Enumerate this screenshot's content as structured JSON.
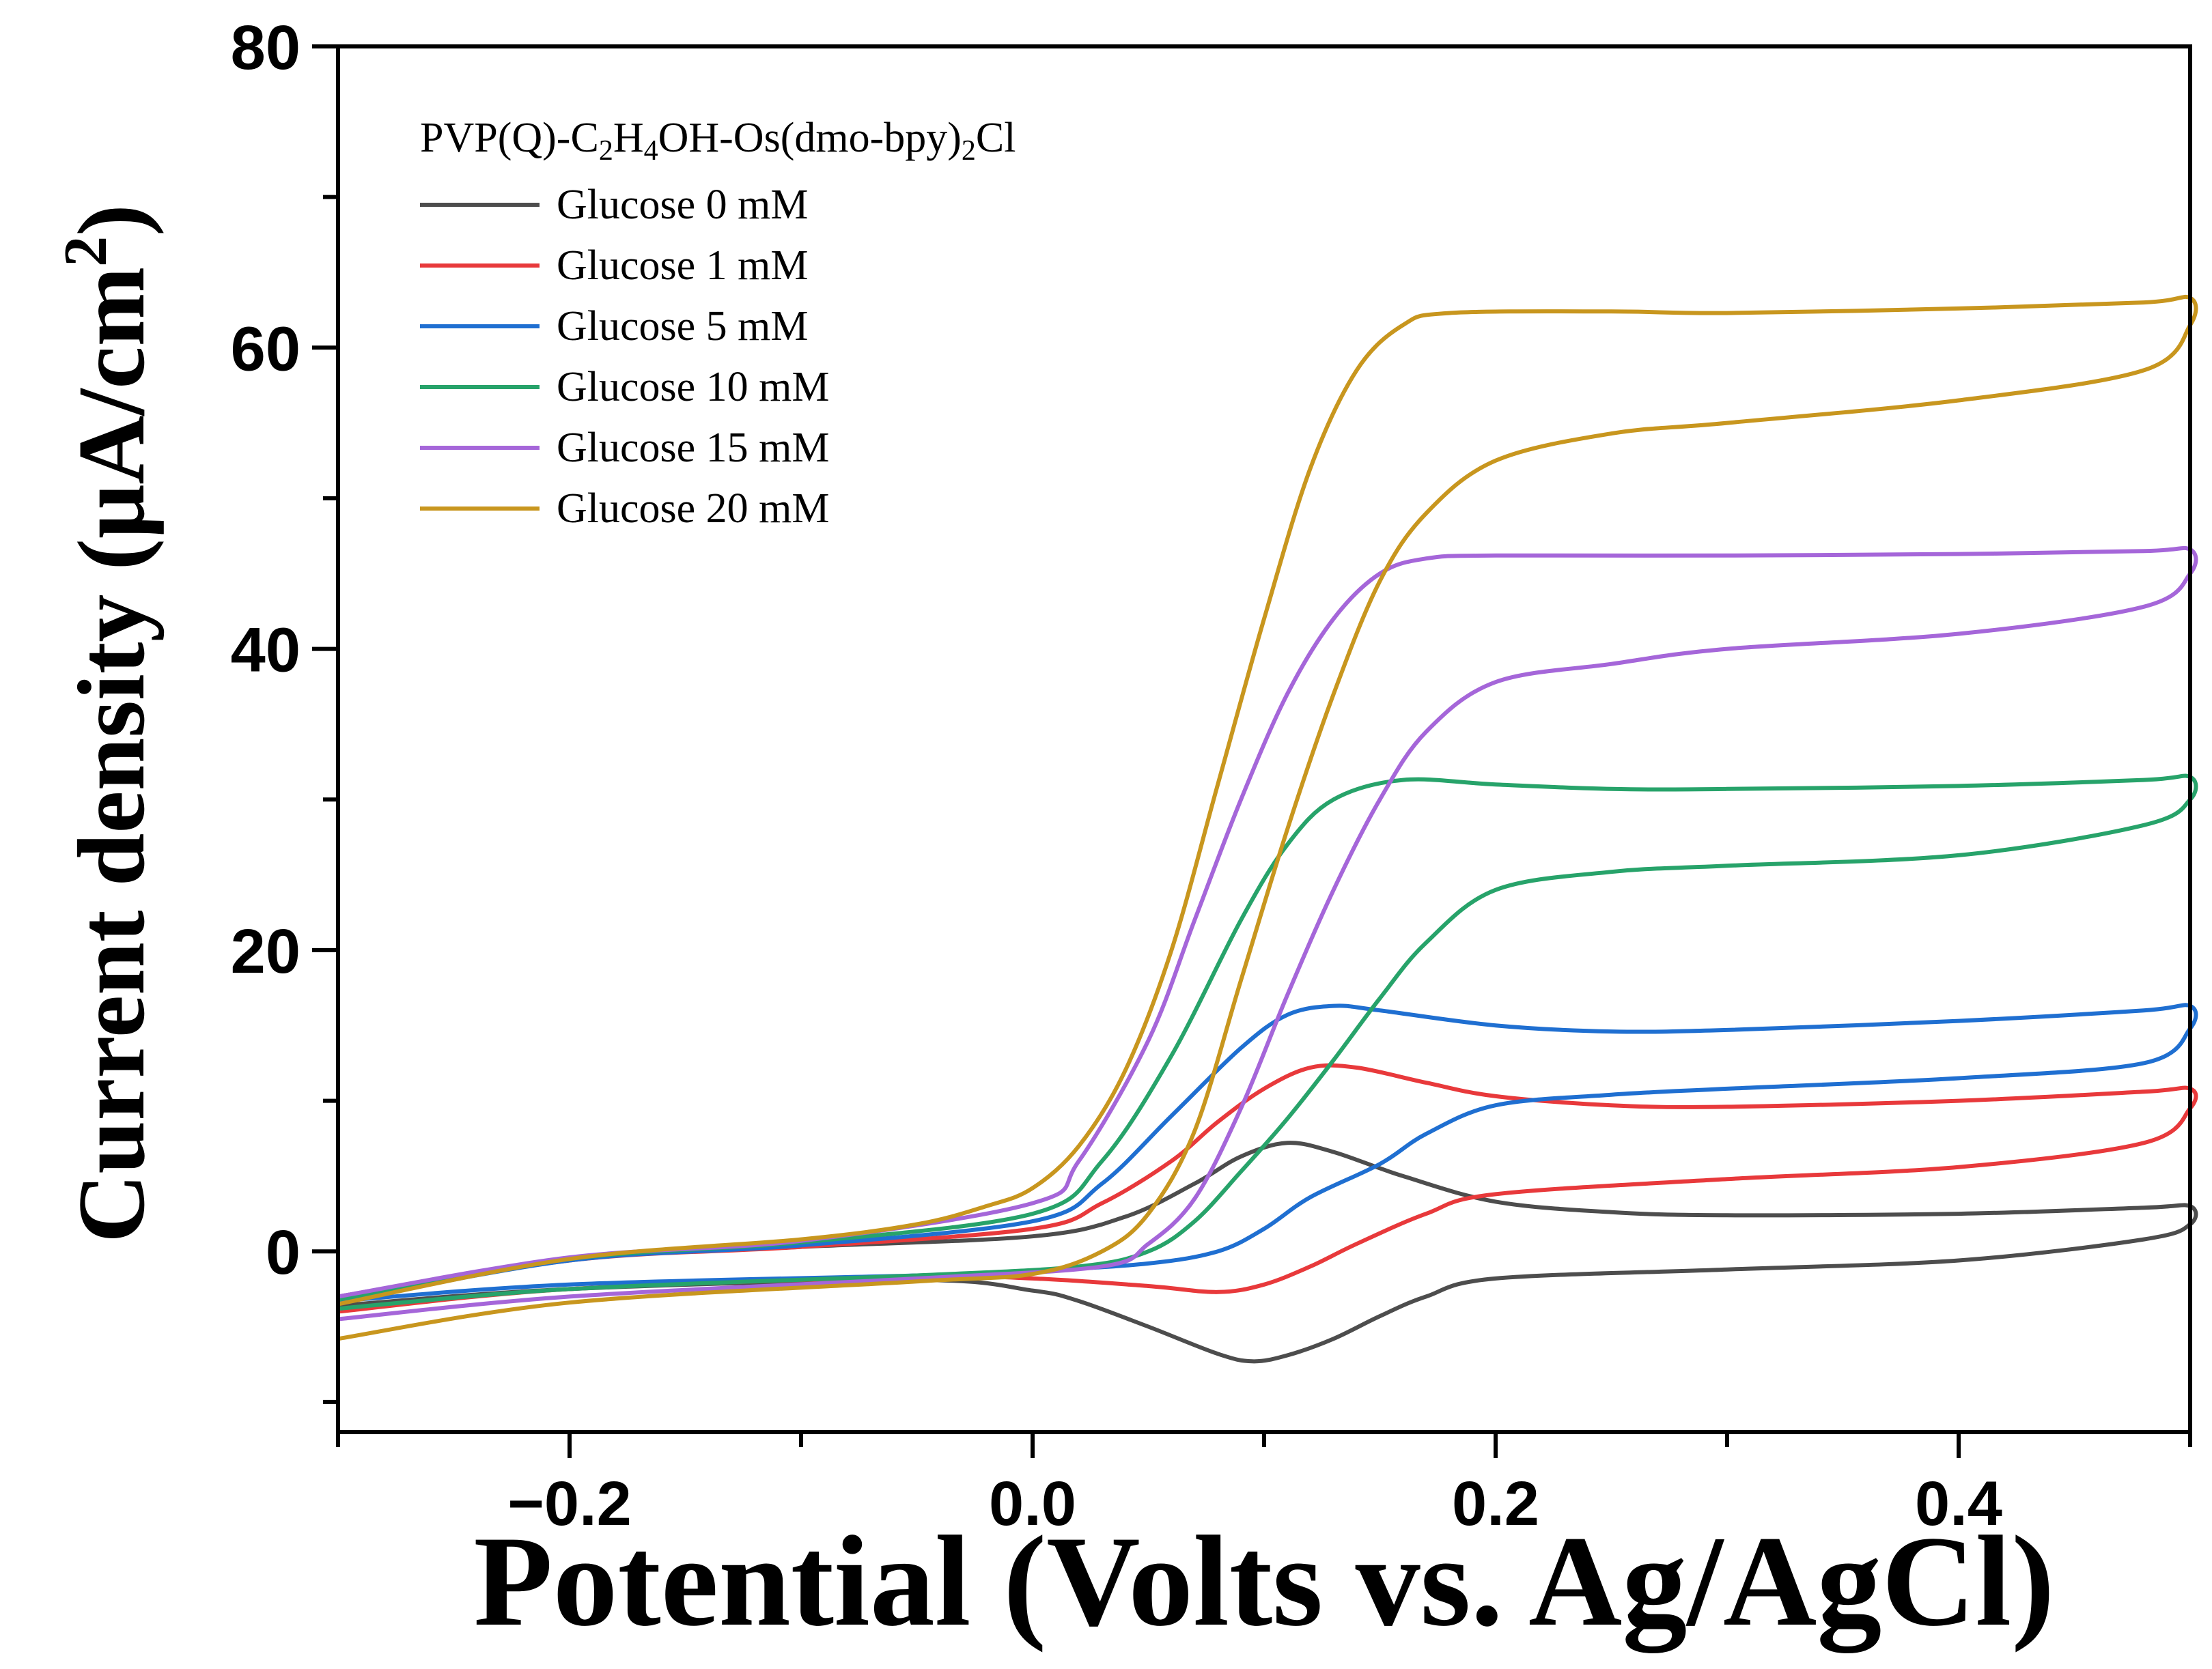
{
  "chart_data": {
    "type": "line",
    "title": "",
    "xlabel": "Potential (Volts vs. Ag/AgCl)",
    "ylabel_main": "Current density (μA/cm",
    "ylabel_sup": "2",
    "ylabel_close": ")",
    "xlim": [
      -0.3,
      0.5
    ],
    "ylim": [
      -12,
      80
    ],
    "x_ticks": [
      -0.2,
      0.0,
      0.2,
      0.4
    ],
    "x_tick_labels": [
      "−0.2",
      "0.0",
      "0.2",
      "0.4"
    ],
    "x_minor_ticks": [
      -0.3,
      -0.1,
      0.1,
      0.3,
      0.5
    ],
    "y_ticks": [
      0,
      20,
      40,
      60,
      80
    ],
    "y_tick_labels": [
      "0",
      "20",
      "40",
      "60",
      "80"
    ],
    "y_minor_ticks": [
      -10,
      10,
      30,
      50,
      70
    ],
    "legend": {
      "title_parts": [
        "PVP(Q)-C",
        "2",
        "H",
        "4",
        "OH-Os(dmo-bpy)",
        "2",
        "Cl"
      ],
      "placement": "top-left"
    },
    "series": [
      {
        "name": "Glucose 0 mM",
        "color": "#4d4d4d",
        "upper": [
          [
            -0.3,
            -3.0
          ],
          [
            -0.2,
            -0.5
          ],
          [
            -0.1,
            0.3
          ],
          [
            0.0,
            1.0
          ],
          [
            0.04,
            2.3
          ],
          [
            0.07,
            4.5
          ],
          [
            0.09,
            6.3
          ],
          [
            0.11,
            7.2
          ],
          [
            0.13,
            6.6
          ],
          [
            0.16,
            5.0
          ],
          [
            0.2,
            3.3
          ],
          [
            0.25,
            2.6
          ],
          [
            0.3,
            2.4
          ],
          [
            0.4,
            2.5
          ],
          [
            0.48,
            2.9
          ],
          [
            0.5,
            3.0
          ]
        ],
        "lower": [
          [
            0.5,
            1.8
          ],
          [
            0.48,
            0.8
          ],
          [
            0.4,
            -0.6
          ],
          [
            0.3,
            -1.2
          ],
          [
            0.2,
            -1.8
          ],
          [
            0.17,
            -3.0
          ],
          [
            0.15,
            -4.3
          ],
          [
            0.13,
            -5.8
          ],
          [
            0.11,
            -6.9
          ],
          [
            0.095,
            -7.3
          ],
          [
            0.08,
            -6.8
          ],
          [
            0.05,
            -5.0
          ],
          [
            0.02,
            -3.3
          ],
          [
            0.0,
            -2.6
          ],
          [
            -0.05,
            -1.9
          ],
          [
            -0.2,
            -2.5
          ],
          [
            -0.3,
            -3.6
          ]
        ]
      },
      {
        "name": "Glucose 1 mM",
        "color": "#e8393b",
        "upper": [
          [
            -0.3,
            -3.3
          ],
          [
            -0.2,
            -0.6
          ],
          [
            -0.1,
            0.3
          ],
          [
            0.0,
            1.5
          ],
          [
            0.03,
            3.2
          ],
          [
            0.06,
            6.0
          ],
          [
            0.08,
            8.6
          ],
          [
            0.1,
            10.8
          ],
          [
            0.12,
            12.2
          ],
          [
            0.14,
            12.2
          ],
          [
            0.17,
            11.2
          ],
          [
            0.2,
            10.3
          ],
          [
            0.25,
            9.7
          ],
          [
            0.3,
            9.6
          ],
          [
            0.4,
            10.0
          ],
          [
            0.48,
            10.6
          ],
          [
            0.5,
            10.8
          ]
        ],
        "lower": [
          [
            0.5,
            9.5
          ],
          [
            0.48,
            7.2
          ],
          [
            0.4,
            5.6
          ],
          [
            0.3,
            4.8
          ],
          [
            0.2,
            3.8
          ],
          [
            0.17,
            2.5
          ],
          [
            0.14,
            0.5
          ],
          [
            0.12,
            -1.0
          ],
          [
            0.1,
            -2.2
          ],
          [
            0.08,
            -2.7
          ],
          [
            0.05,
            -2.3
          ],
          [
            0.0,
            -1.8
          ],
          [
            -0.05,
            -1.7
          ],
          [
            -0.2,
            -2.5
          ],
          [
            -0.3,
            -4.0
          ]
        ]
      },
      {
        "name": "Glucose 5 mM",
        "color": "#1f6fd1",
        "upper": [
          [
            -0.3,
            -3.4
          ],
          [
            -0.2,
            -0.6
          ],
          [
            -0.1,
            0.4
          ],
          [
            0.0,
            2.0
          ],
          [
            0.03,
            4.5
          ],
          [
            0.06,
            9.0
          ],
          [
            0.09,
            13.5
          ],
          [
            0.11,
            15.7
          ],
          [
            0.13,
            16.3
          ],
          [
            0.15,
            16.0
          ],
          [
            0.2,
            15.0
          ],
          [
            0.25,
            14.6
          ],
          [
            0.3,
            14.7
          ],
          [
            0.4,
            15.3
          ],
          [
            0.48,
            16.0
          ],
          [
            0.5,
            16.3
          ]
        ],
        "lower": [
          [
            0.5,
            14.8
          ],
          [
            0.48,
            12.5
          ],
          [
            0.4,
            11.5
          ],
          [
            0.3,
            10.8
          ],
          [
            0.25,
            10.4
          ],
          [
            0.2,
            9.7
          ],
          [
            0.17,
            7.8
          ],
          [
            0.15,
            5.8
          ],
          [
            0.12,
            3.6
          ],
          [
            0.1,
            1.5
          ],
          [
            0.08,
            0.0
          ],
          [
            0.05,
            -0.8
          ],
          [
            0.0,
            -1.3
          ],
          [
            -0.05,
            -1.6
          ],
          [
            -0.2,
            -2.2
          ],
          [
            -0.3,
            -3.3
          ]
        ]
      },
      {
        "name": "Glucose 10 mM",
        "color": "#27a36a",
        "upper": [
          [
            -0.3,
            -3.2
          ],
          [
            -0.2,
            -0.5
          ],
          [
            -0.1,
            0.6
          ],
          [
            0.0,
            2.5
          ],
          [
            0.03,
            6.0
          ],
          [
            0.06,
            13.0
          ],
          [
            0.09,
            22.0
          ],
          [
            0.11,
            27.0
          ],
          [
            0.13,
            30.0
          ],
          [
            0.16,
            31.3
          ],
          [
            0.2,
            31.0
          ],
          [
            0.25,
            30.7
          ],
          [
            0.3,
            30.7
          ],
          [
            0.4,
            30.9
          ],
          [
            0.48,
            31.3
          ],
          [
            0.5,
            31.5
          ]
        ],
        "lower": [
          [
            0.5,
            30.0
          ],
          [
            0.48,
            28.3
          ],
          [
            0.4,
            26.3
          ],
          [
            0.3,
            25.6
          ],
          [
            0.25,
            25.2
          ],
          [
            0.2,
            24.0
          ],
          [
            0.17,
            20.5
          ],
          [
            0.15,
            16.8
          ],
          [
            0.13,
            12.7
          ],
          [
            0.11,
            8.8
          ],
          [
            0.09,
            5.3
          ],
          [
            0.07,
            2.0
          ],
          [
            0.05,
            0.0
          ],
          [
            0.02,
            -1.0
          ],
          [
            -0.05,
            -1.6
          ],
          [
            -0.2,
            -2.5
          ],
          [
            -0.3,
            -3.8
          ]
        ]
      },
      {
        "name": "Glucose 15 mM",
        "color": "#a566d9",
        "upper": [
          [
            -0.3,
            -3.0
          ],
          [
            -0.2,
            -0.4
          ],
          [
            -0.1,
            0.7
          ],
          [
            0.0,
            3.2
          ],
          [
            0.02,
            6.0
          ],
          [
            0.05,
            14.0
          ],
          [
            0.07,
            22.0
          ],
          [
            0.09,
            30.0
          ],
          [
            0.11,
            37.0
          ],
          [
            0.13,
            42.0
          ],
          [
            0.15,
            45.0
          ],
          [
            0.17,
            46.0
          ],
          [
            0.2,
            46.2
          ],
          [
            0.3,
            46.2
          ],
          [
            0.4,
            46.3
          ],
          [
            0.48,
            46.5
          ],
          [
            0.5,
            46.6
          ]
        ],
        "lower": [
          [
            0.5,
            45.0
          ],
          [
            0.48,
            42.8
          ],
          [
            0.4,
            41.0
          ],
          [
            0.3,
            40.0
          ],
          [
            0.25,
            39.0
          ],
          [
            0.2,
            37.8
          ],
          [
            0.17,
            34.5
          ],
          [
            0.15,
            30.0
          ],
          [
            0.13,
            24.0
          ],
          [
            0.11,
            17.0
          ],
          [
            0.09,
            9.5
          ],
          [
            0.07,
            3.5
          ],
          [
            0.05,
            0.5
          ],
          [
            0.03,
            -1.0
          ],
          [
            -0.05,
            -1.8
          ],
          [
            -0.2,
            -3.0
          ],
          [
            -0.3,
            -4.5
          ]
        ]
      },
      {
        "name": "Glucose 20 mM",
        "color": "#c8961e",
        "upper": [
          [
            -0.3,
            -3.5
          ],
          [
            -0.2,
            -0.5
          ],
          [
            -0.1,
            0.8
          ],
          [
            -0.05,
            1.8
          ],
          [
            -0.02,
            3.0
          ],
          [
            0.0,
            4.2
          ],
          [
            0.02,
            7.0
          ],
          [
            0.04,
            12.0
          ],
          [
            0.06,
            20.0
          ],
          [
            0.08,
            31.0
          ],
          [
            0.1,
            42.0
          ],
          [
            0.12,
            52.0
          ],
          [
            0.14,
            58.5
          ],
          [
            0.16,
            61.5
          ],
          [
            0.18,
            62.3
          ],
          [
            0.25,
            62.4
          ],
          [
            0.3,
            62.3
          ],
          [
            0.4,
            62.6
          ],
          [
            0.48,
            63.0
          ],
          [
            0.5,
            63.3
          ]
        ],
        "lower": [
          [
            0.5,
            61.5
          ],
          [
            0.48,
            58.5
          ],
          [
            0.4,
            56.5
          ],
          [
            0.3,
            55.0
          ],
          [
            0.25,
            54.3
          ],
          [
            0.2,
            52.5
          ],
          [
            0.17,
            49.0
          ],
          [
            0.15,
            44.5
          ],
          [
            0.13,
            37.0
          ],
          [
            0.11,
            28.0
          ],
          [
            0.09,
            18.0
          ],
          [
            0.07,
            8.0
          ],
          [
            0.05,
            2.5
          ],
          [
            0.03,
            0.0
          ],
          [
            0.0,
            -1.5
          ],
          [
            -0.05,
            -2.0
          ],
          [
            -0.2,
            -3.4
          ],
          [
            -0.3,
            -5.8
          ]
        ]
      }
    ]
  }
}
